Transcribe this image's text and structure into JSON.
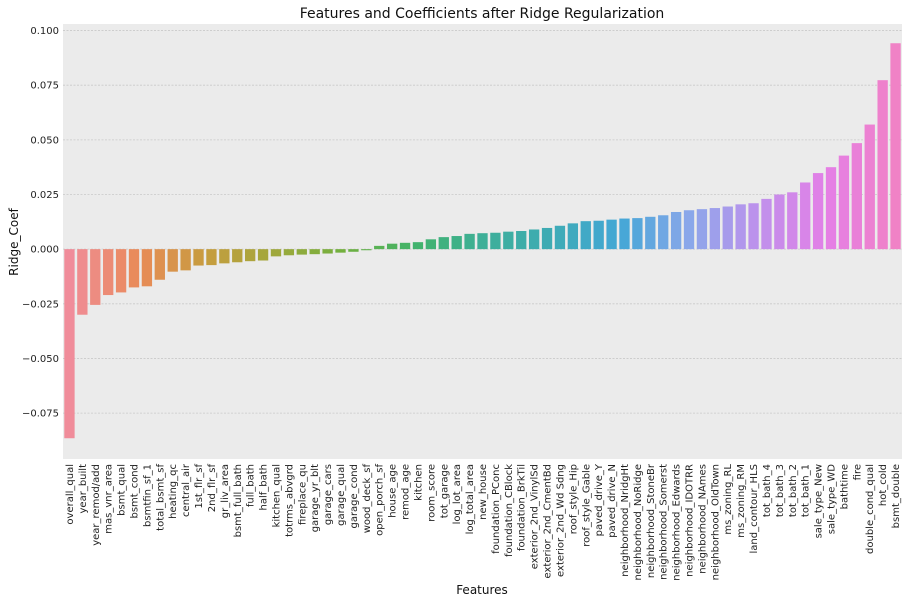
{
  "chart_data": {
    "type": "bar",
    "title": "Features and Coefficients after Ridge Regularization",
    "xlabel": "Features",
    "ylabel": "Ridge_Coef",
    "ylim": [
      -0.096,
      0.103
    ],
    "yticks": [
      "0.100",
      "0.075",
      "0.050",
      "0.025",
      "0.000",
      "−0.025",
      "−0.050",
      "−0.075"
    ],
    "ytick_values": [
      0.1,
      0.075,
      0.05,
      0.025,
      0.0,
      -0.025,
      -0.05,
      -0.075
    ],
    "grid": true,
    "colors": {
      "background": "#ebebeb",
      "grid": "#ffffff",
      "palette": [
        "#f08c9a",
        "#e98b58",
        "#c69d3e",
        "#9fa83c",
        "#70b03e",
        "#41b36b",
        "#3eaf98",
        "#3eabb5",
        "#44a7d6",
        "#8aa7ea",
        "#be91ec",
        "#e47fe6",
        "#f082c6"
      ]
    },
    "categories": [
      "overall_qual",
      "year_built",
      "year_remod/add",
      "mas_vnr_area",
      "bsmt_qual",
      "bsmt_cond",
      "bsmtfin_sf_1",
      "total_bsmt_sf",
      "heating_qc",
      "central_air",
      "1st_flr_sf",
      "2nd_flr_sf",
      "gr_liv_area",
      "bsmt_full_bath",
      "full_bath",
      "half_bath",
      "kitchen_qual",
      "totrms_abvgrd",
      "fireplace_qu",
      "garage_yr_blt",
      "garage_cars",
      "garage_qual",
      "garage_cond",
      "wood_deck_sf",
      "open_porch_sf",
      "house_age",
      "remod_age",
      "kitchen",
      "room_score",
      "tot_garage",
      "log_lot_area",
      "log_total_area",
      "new_house",
      "foundation_PConc",
      "foundation_CBlock",
      "foundation_BrkTil",
      "exterior_2nd_VinylSd",
      "exterior_2nd_CmentBd",
      "exterior_2nd_Wd Sdng",
      "roof_style_Hip",
      "roof_style_Gable",
      "paved_drive_Y",
      "paved_drive_N",
      "neighborhood_NridgHt",
      "neighborhood_NoRidge",
      "neighborhood_StoneBr",
      "neighborhood_Somerst",
      "neighborhood_Edwards",
      "neighborhood_IDOTRR",
      "neighborhood_NAmes",
      "neighborhood_OldTown",
      "ms_zoning_RL",
      "ms_zoning_RM",
      "land_contour_HLS",
      "tot_bath_4",
      "tot_bath_3",
      "tot_bath_2",
      "tot_bath_1",
      "sale_type_New",
      "sale_type_WD",
      "bathtime",
      "fire",
      "double_cond_qual",
      "hot_cold",
      "bsmt_double"
    ],
    "values": [
      -0.0865,
      -0.03,
      -0.0255,
      -0.021,
      -0.0198,
      -0.0175,
      -0.017,
      -0.014,
      -0.0103,
      -0.0097,
      -0.0075,
      -0.0073,
      -0.0065,
      -0.006,
      -0.0055,
      -0.0052,
      -0.0033,
      -0.0028,
      -0.0025,
      -0.0023,
      -0.002,
      -0.0016,
      -0.0012,
      -0.0005,
      0.0015,
      0.0025,
      0.0029,
      0.0032,
      0.0045,
      0.0055,
      0.006,
      0.007,
      0.0073,
      0.0075,
      0.008,
      0.0083,
      0.009,
      0.0097,
      0.0107,
      0.0118,
      0.0128,
      0.013,
      0.0135,
      0.014,
      0.0142,
      0.0148,
      0.0155,
      0.017,
      0.0178,
      0.0183,
      0.0188,
      0.0195,
      0.0205,
      0.021,
      0.023,
      0.025,
      0.026,
      0.0305,
      0.0348,
      0.0375,
      0.0428,
      0.0485,
      0.057,
      0.0773,
      0.0942
    ]
  }
}
